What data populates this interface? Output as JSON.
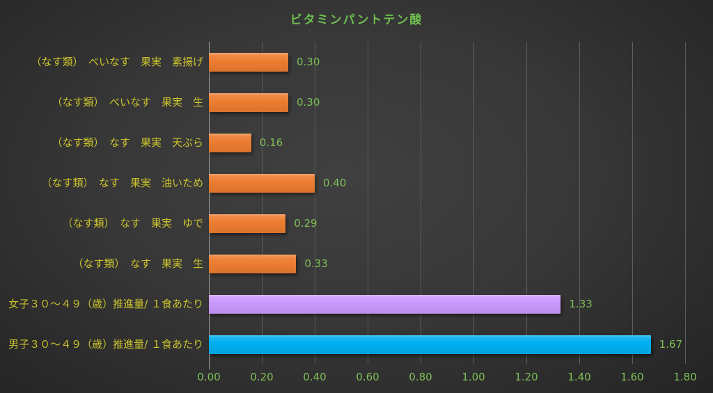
{
  "title": "ビタミンパントテン酸",
  "colors": {
    "title": "#6EBE50",
    "value_label": "#7FBF56",
    "tick_label": "#7FBF56",
    "category_label": "#CBC32D",
    "gridline": "#5E5E5E",
    "axis_line": "#9B9B9B",
    "bar_orange": "#ED7D31",
    "bar_purple": "#CC99FF",
    "bar_blue": "#00B0F0"
  },
  "chart_data": {
    "type": "bar",
    "orientation": "horizontal",
    "title": "ビタミンパントテン酸",
    "xlabel": "",
    "ylabel": "",
    "xlim": [
      0,
      1.8
    ],
    "grid": true,
    "legend": false,
    "xticks": [
      {
        "value": 0.0,
        "label": "0.00"
      },
      {
        "value": 0.2,
        "label": "0.20"
      },
      {
        "value": 0.4,
        "label": "0.40"
      },
      {
        "value": 0.6,
        "label": "0.60"
      },
      {
        "value": 0.8,
        "label": "0.80"
      },
      {
        "value": 1.0,
        "label": "1.00"
      },
      {
        "value": 1.2,
        "label": "1.20"
      },
      {
        "value": 1.4,
        "label": "1.40"
      },
      {
        "value": 1.6,
        "label": "1.60"
      },
      {
        "value": 1.8,
        "label": "1.80"
      }
    ],
    "rows": [
      {
        "category": "（なす類）　べいなす　果実　素揚げ",
        "value": 0.3,
        "value_label": "0.30",
        "color": "bar_orange"
      },
      {
        "category": "（なす類）　べいなす　果実　生",
        "value": 0.3,
        "value_label": "0.30",
        "color": "bar_orange"
      },
      {
        "category": "（なす類）　なす　果実　天ぷら",
        "value": 0.16,
        "value_label": "0.16",
        "color": "bar_orange"
      },
      {
        "category": "（なす類）　なす　果実　油いため",
        "value": 0.4,
        "value_label": "0.40",
        "color": "bar_orange"
      },
      {
        "category": "（なす類）　なす　果実　ゆで",
        "value": 0.29,
        "value_label": "0.29",
        "color": "bar_orange"
      },
      {
        "category": "（なす類）　なす　果実　生",
        "value": 0.33,
        "value_label": "0.33",
        "color": "bar_orange"
      },
      {
        "category": "女子３０～４９（歳）推進量/ １食あたり",
        "value": 1.33,
        "value_label": "1.33",
        "color": "bar_purple"
      },
      {
        "category": "男子３０～４９（歳）推進量/ １食あたり",
        "value": 1.67,
        "value_label": "1.67",
        "color": "bar_blue"
      }
    ]
  }
}
